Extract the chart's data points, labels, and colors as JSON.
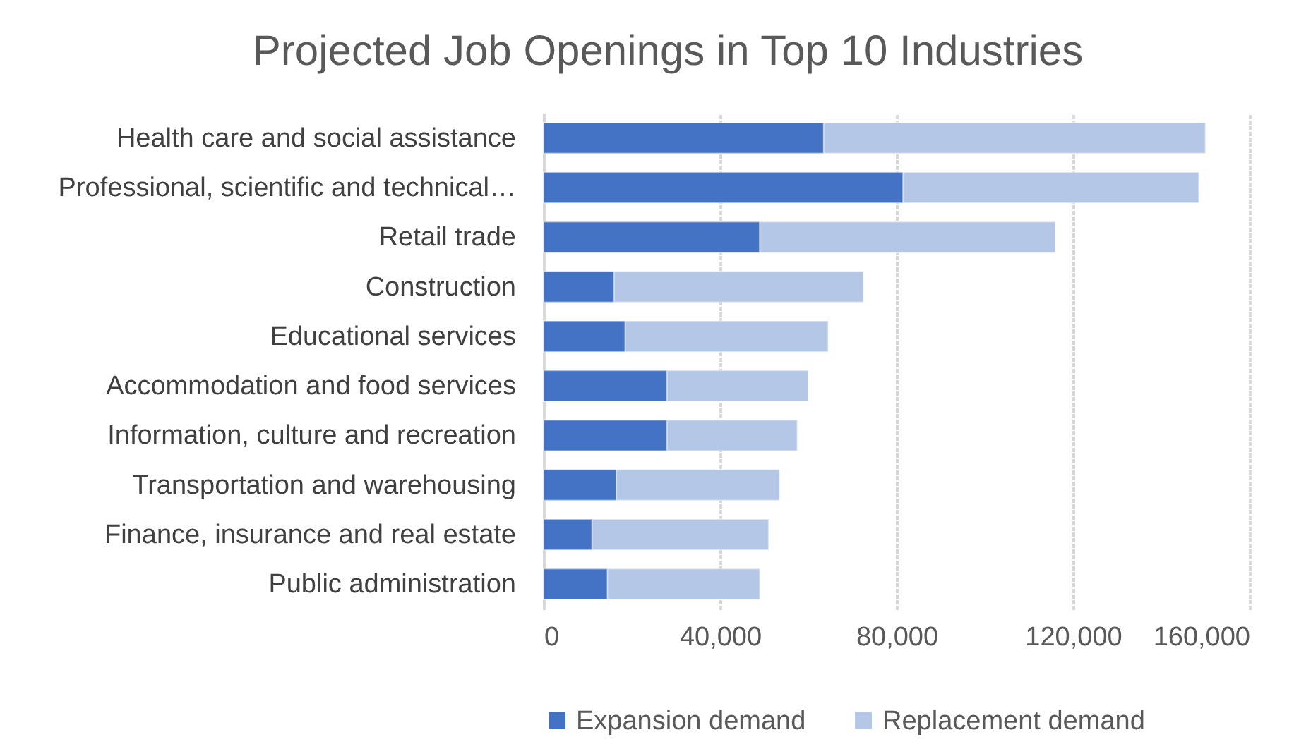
{
  "chart_data": {
    "type": "bar",
    "orientation": "horizontal",
    "stacked": true,
    "title": "Projected Job Openings in Top 10 Industries",
    "categories": [
      "Health care and social assistance",
      "Professional, scientific and technical…",
      "Retail trade",
      "Construction",
      "Educational services",
      "Accommodation and food services",
      "Information, culture and recreation",
      "Transportation and warehousing",
      "Finance, insurance and real estate",
      "Public administration"
    ],
    "series": [
      {
        "name": "Expansion demand",
        "color": "#4472c4",
        "values": [
          63500,
          81500,
          49000,
          16000,
          18500,
          28000,
          28000,
          16500,
          11000,
          14500
        ]
      },
      {
        "name": "Replacement demand",
        "color": "#b4c7e7",
        "values": [
          86500,
          67000,
          67000,
          56500,
          46000,
          32000,
          29500,
          37000,
          40000,
          34500
        ]
      }
    ],
    "xlim": [
      0,
      160000
    ],
    "xticks": [
      0,
      {
        "value": 40000,
        "label": "40,000"
      },
      {
        "value": 80000,
        "label": "80,000"
      },
      {
        "value": 120000,
        "label": "120,000"
      },
      {
        "value": 160000,
        "label": "160,000"
      }
    ],
    "grid": "x",
    "legend": "bottom"
  }
}
